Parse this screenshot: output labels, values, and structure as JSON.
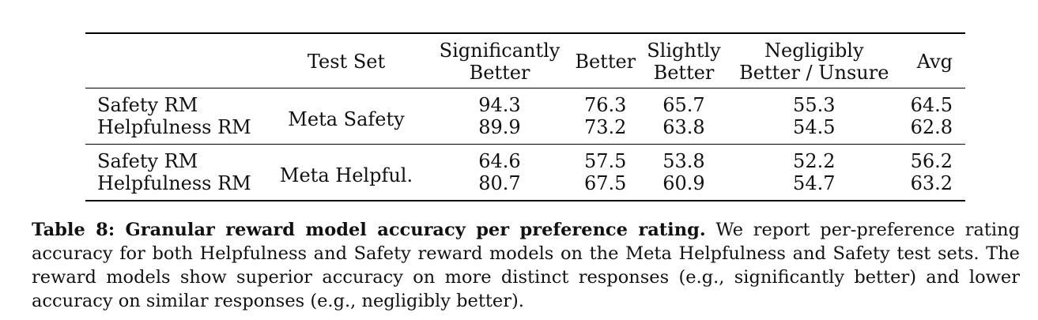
{
  "table": {
    "headers": {
      "model": "",
      "test_set": "Test Set",
      "sig_line1": "Significantly",
      "sig_line2": "Better",
      "better": "Better",
      "slight_line1": "Slightly",
      "slight_line2": "Better",
      "neg_line1": "Negligibly",
      "neg_line2": "Better / Unsure",
      "avg": "Avg"
    },
    "groups": [
      {
        "test_set": "Meta Safety",
        "rows": [
          {
            "model": "Safety RM",
            "sig": "94.3",
            "better": "76.3",
            "slight": "65.7",
            "neg": "55.3",
            "avg": "64.5"
          },
          {
            "model": "Helpfulness RM",
            "sig": "89.9",
            "better": "73.2",
            "slight": "63.8",
            "neg": "54.5",
            "avg": "62.8"
          }
        ]
      },
      {
        "test_set": "Meta Helpful.",
        "rows": [
          {
            "model": "Safety RM",
            "sig": "64.6",
            "better": "57.5",
            "slight": "53.8",
            "neg": "52.2",
            "avg": "56.2"
          },
          {
            "model": "Helpfulness RM",
            "sig": "80.7",
            "better": "67.5",
            "slight": "60.9",
            "neg": "54.7",
            "avg": "63.2"
          }
        ]
      }
    ]
  },
  "caption": {
    "label": "Table 8: Granular reward model accuracy per preference rating.",
    "text": " We report per-preference rating accuracy for both Helpfulness and Safety reward models on the Meta Helpfulness and Safety test sets. The reward models show superior accuracy on more distinct responses (e.g., significantly better) and lower accuracy on similar responses (e.g., negligibly better)."
  }
}
